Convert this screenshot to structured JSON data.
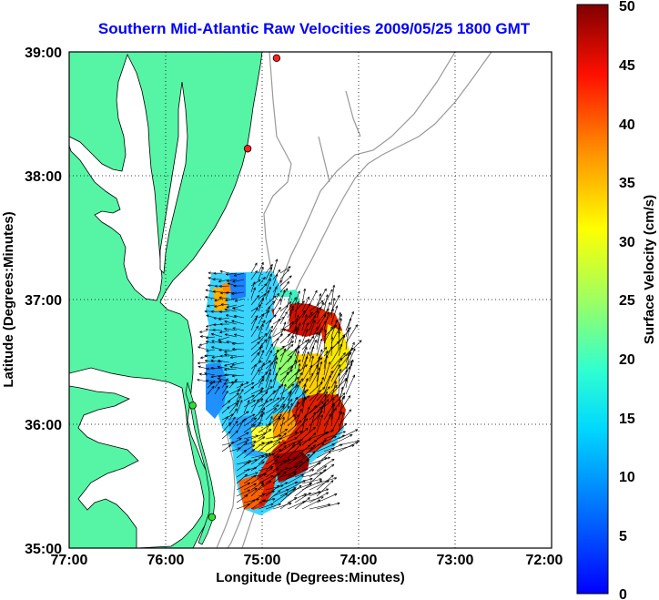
{
  "title": "Southern Mid-Atlantic Raw Velocities 2009/05/25 1800 GMT",
  "map": {
    "xlabel": "Longitude (Degrees:Minutes)",
    "ylabel": "Latitude (Degrees:Minutes)",
    "x_ticks": [
      "77:00",
      "76:00",
      "75:00",
      "74:00",
      "73:00",
      "72:00"
    ],
    "y_ticks": [
      "39:00",
      "38:00",
      "37:00",
      "36:00",
      "35:00"
    ],
    "lon_range": [
      -77,
      -72
    ],
    "lat_range": [
      35,
      39
    ],
    "grid": "dotted",
    "land_color": "#55f5a5",
    "coastline_color": "#000000",
    "bathymetry_color": "#999999"
  },
  "colorbar": {
    "label": "Surface Velocity (cm/s)",
    "ticks": [
      "50",
      "45",
      "40",
      "35",
      "30",
      "25",
      "20",
      "15",
      "10",
      "5",
      "0"
    ],
    "range": [
      0,
      50
    ],
    "colormap": "jet"
  },
  "stations": [
    {
      "color": "#ff2020",
      "lon": -74.85,
      "lat": 38.95
    },
    {
      "color": "#ff2020",
      "lon": -75.15,
      "lat": 38.22
    },
    {
      "color": "#30e030",
      "lon": -75.72,
      "lat": 36.15
    },
    {
      "color": "#30e030",
      "lon": -75.52,
      "lat": 35.25
    }
  ]
}
